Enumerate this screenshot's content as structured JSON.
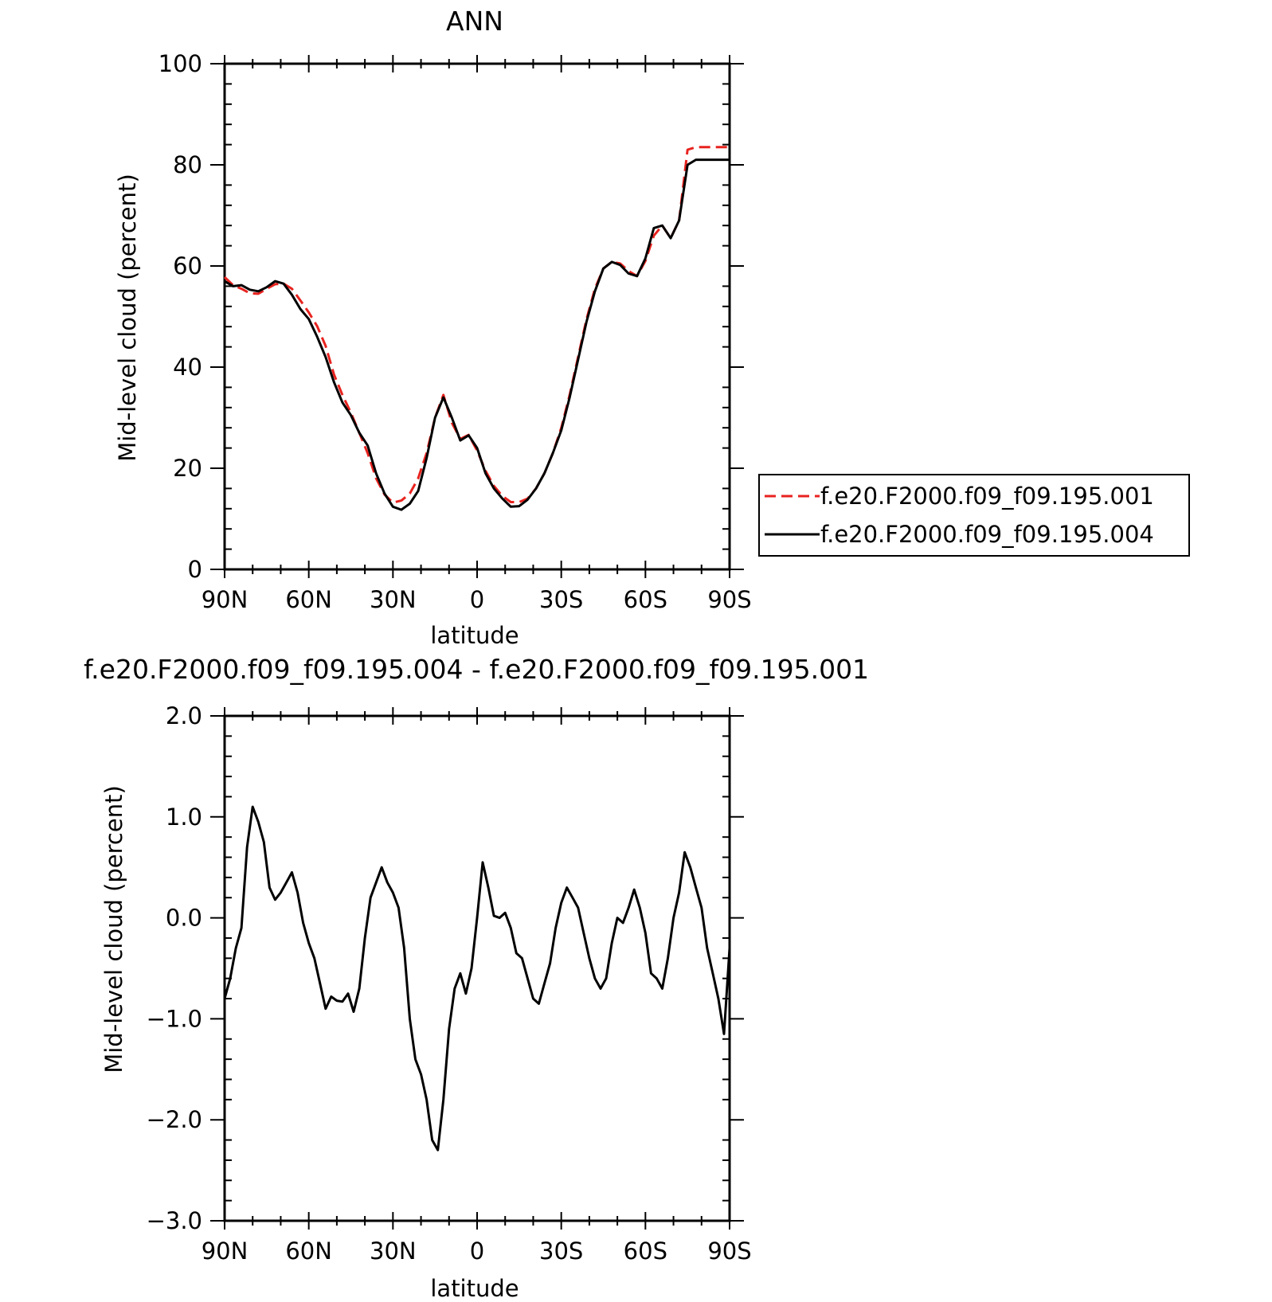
{
  "chart_data": [
    {
      "type": "line",
      "title": "ANN",
      "xlabel": "latitude",
      "ylabel": "Mid-level cloud (percent)",
      "xlim": [
        90,
        -90
      ],
      "ylim": [
        0,
        100
      ],
      "xticks": [
        {
          "value": 90,
          "label": "90N"
        },
        {
          "value": 60,
          "label": "60N"
        },
        {
          "value": 30,
          "label": "30N"
        },
        {
          "value": 0,
          "label": "0"
        },
        {
          "value": -30,
          "label": "30S"
        },
        {
          "value": -60,
          "label": "60S"
        },
        {
          "value": -90,
          "label": "90S"
        }
      ],
      "yticks": [
        {
          "value": 0,
          "label": "0"
        },
        {
          "value": 20,
          "label": "20"
        },
        {
          "value": 40,
          "label": "40"
        },
        {
          "value": 60,
          "label": "60"
        },
        {
          "value": 80,
          "label": "80"
        },
        {
          "value": 100,
          "label": "100"
        }
      ],
      "legend": "right",
      "grid": false,
      "series": [
        {
          "name": "f.e20.F2000.f09_f09.195.001",
          "color": "#e8231f",
          "dash": "dashed",
          "x": [
            90,
            87,
            84,
            81,
            78,
            75,
            72,
            69,
            66,
            63,
            60,
            57,
            54,
            51,
            48,
            45,
            42,
            39,
            36,
            33,
            30,
            27,
            24,
            21,
            18,
            15,
            12,
            9,
            6,
            3,
            0,
            -3,
            -6,
            -9,
            -12,
            -15,
            -18,
            -21,
            -24,
            -27,
            -30,
            -33,
            -36,
            -39,
            -42,
            -45,
            -48,
            -51,
            -54,
            -57,
            -60,
            -63,
            -66,
            -69,
            -72,
            -75,
            -78,
            -81,
            -84,
            -87,
            -90
          ],
          "y": [
            57.8,
            56.2,
            55.5,
            54.6,
            54.5,
            55.5,
            56.4,
            56.5,
            55.5,
            53.2,
            50.8,
            48.1,
            44.2,
            38.5,
            34.5,
            31.0,
            27.0,
            23.0,
            18.0,
            14.8,
            13.2,
            13.6,
            15.0,
            18.0,
            23.0,
            30.0,
            34.5,
            29.0,
            25.8,
            26.6,
            23.5,
            19.5,
            16.5,
            14.5,
            13.3,
            13.3,
            14.0,
            16.0,
            19.0,
            23.0,
            28.0,
            34.5,
            42.0,
            49.5,
            55.5,
            59.5,
            60.8,
            60.5,
            59.0,
            58.0,
            61.0,
            66.0,
            68.0,
            65.5,
            69.0,
            83.0,
            83.5,
            83.5,
            83.5,
            83.5,
            83.5
          ]
        },
        {
          "name": "f.e20.F2000.f09_f09.195.004",
          "color": "#000000",
          "dash": "solid",
          "x": [
            90,
            87,
            84,
            81,
            78,
            75,
            72,
            69,
            66,
            63,
            60,
            57,
            54,
            51,
            48,
            45,
            42,
            39,
            36,
            33,
            30,
            27,
            24,
            21,
            18,
            15,
            12,
            9,
            6,
            3,
            0,
            -3,
            -6,
            -9,
            -12,
            -15,
            -18,
            -21,
            -24,
            -27,
            -30,
            -33,
            -36,
            -39,
            -42,
            -45,
            -48,
            -51,
            -54,
            -57,
            -60,
            -63,
            -66,
            -69,
            -72,
            -75,
            -78,
            -81,
            -84,
            -87,
            -90
          ],
          "y": [
            57.0,
            56.0,
            56.2,
            55.3,
            55.0,
            55.8,
            57.0,
            56.5,
            54.3,
            51.5,
            49.5,
            46.0,
            42.0,
            37.0,
            33.0,
            30.5,
            27.0,
            24.5,
            19.0,
            15.0,
            12.4,
            11.8,
            13.0,
            15.5,
            22.0,
            30.0,
            34.0,
            30.0,
            25.5,
            26.5,
            24.0,
            19.0,
            16.0,
            14.0,
            12.4,
            12.5,
            13.8,
            16.0,
            19.0,
            23.0,
            27.5,
            34.0,
            41.5,
            49.0,
            55.0,
            59.5,
            60.8,
            60.2,
            58.5,
            58.0,
            61.5,
            67.5,
            68.0,
            65.5,
            69.0,
            80.0,
            81.0,
            81.0,
            81.0,
            81.0,
            81.0
          ]
        }
      ]
    },
    {
      "type": "line",
      "title": "f.e20.F2000.f09_f09.195.004 - f.e20.F2000.f09_f09.195.001",
      "xlabel": "latitude",
      "ylabel": "Mid-level cloud (percent)",
      "xlim": [
        90,
        -90
      ],
      "ylim": [
        -3.0,
        2.0
      ],
      "xticks": [
        {
          "value": 90,
          "label": "90N"
        },
        {
          "value": 60,
          "label": "60N"
        },
        {
          "value": 30,
          "label": "30N"
        },
        {
          "value": 0,
          "label": "0"
        },
        {
          "value": -30,
          "label": "30S"
        },
        {
          "value": -60,
          "label": "60S"
        },
        {
          "value": -90,
          "label": "90S"
        }
      ],
      "yticks": [
        {
          "value": -3.0,
          "label": "−3.0"
        },
        {
          "value": -2.0,
          "label": "−2.0"
        },
        {
          "value": -1.0,
          "label": "−1.0"
        },
        {
          "value": 0.0,
          "label": "0.0"
        },
        {
          "value": 1.0,
          "label": "1.0"
        },
        {
          "value": 2.0,
          "label": "2.0"
        }
      ],
      "grid": false,
      "series": [
        {
          "color": "#000000",
          "dash": "solid",
          "x": [
            90,
            88,
            86,
            84,
            82,
            80,
            78,
            76,
            74,
            72,
            70,
            68,
            66,
            64,
            62,
            60,
            58,
            56,
            54,
            52,
            50,
            48,
            46,
            44,
            42,
            40,
            38,
            36,
            34,
            32,
            30,
            28,
            26,
            24,
            22,
            20,
            18,
            16,
            14,
            12,
            10,
            8,
            6,
            4,
            2,
            0,
            -2,
            -4,
            -6,
            -8,
            -10,
            -12,
            -14,
            -16,
            -18,
            -20,
            -22,
            -24,
            -26,
            -28,
            -30,
            -32,
            -34,
            -36,
            -38,
            -40,
            -42,
            -44,
            -46,
            -48,
            -50,
            -52,
            -54,
            -56,
            -58,
            -60,
            -62,
            -64,
            -66,
            -68,
            -70,
            -72,
            -74,
            -76,
            -78,
            -80,
            -82,
            -84,
            -86,
            -88,
            -90
          ],
          "y": [
            -0.8,
            -0.6,
            -0.3,
            -0.1,
            0.7,
            1.1,
            0.95,
            0.75,
            0.3,
            0.18,
            0.25,
            0.35,
            0.45,
            0.25,
            -0.05,
            -0.25,
            -0.4,
            -0.65,
            -0.9,
            -0.78,
            -0.82,
            -0.83,
            -0.75,
            -0.93,
            -0.7,
            -0.2,
            0.2,
            0.35,
            0.5,
            0.35,
            0.25,
            0.1,
            -0.3,
            -1.0,
            -1.4,
            -1.55,
            -1.8,
            -2.2,
            -2.3,
            -1.8,
            -1.1,
            -0.7,
            -0.55,
            -0.75,
            -0.5,
            0.0,
            0.55,
            0.3,
            0.02,
            0.0,
            0.05,
            -0.1,
            -0.35,
            -0.4,
            -0.6,
            -0.8,
            -0.85,
            -0.65,
            -0.45,
            -0.1,
            0.15,
            0.3,
            0.2,
            0.1,
            -0.15,
            -0.4,
            -0.6,
            -0.7,
            -0.6,
            -0.25,
            0.0,
            -0.05,
            0.1,
            0.28,
            0.1,
            -0.15,
            -0.55,
            -0.6,
            -0.7,
            -0.4,
            0.0,
            0.25,
            0.65,
            0.5,
            0.3,
            0.1,
            -0.3,
            -0.55,
            -0.8,
            -1.15,
            -0.3
          ]
        }
      ]
    }
  ]
}
